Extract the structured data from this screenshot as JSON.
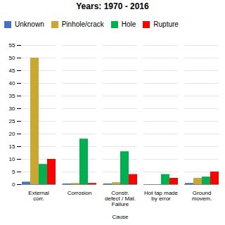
{
  "chart_data": {
    "type": "bar",
    "title": "Years: 1970 - 2016",
    "xlabel": "Cause",
    "categories": [
      "External\ncorr.",
      "Corrosion",
      "Constr.\ndefect / Mat.\nFailure",
      "Hot tap made\nby error",
      "Ground\nmovem."
    ],
    "series": [
      {
        "name": "Unknown",
        "color": "#4472C4",
        "values": [
          1,
          0.3,
          0.3,
          0,
          0.5
        ]
      },
      {
        "name": "Pinhole/crack",
        "color": "#C8A832",
        "values": [
          50,
          0.5,
          0.8,
          0,
          2.5
        ]
      },
      {
        "name": "Hole",
        "color": "#00B050",
        "values": [
          8,
          18,
          13,
          4,
          3
        ]
      },
      {
        "name": "Rupture",
        "color": "#FF0000",
        "values": [
          10,
          0.5,
          4,
          2.5,
          5
        ]
      }
    ],
    "ylim": [
      0,
      55
    ],
    "yticks": [
      0,
      5,
      10,
      15,
      20,
      25,
      30,
      35,
      40,
      45,
      50,
      55
    ],
    "grid": true,
    "legend": "upper left"
  }
}
